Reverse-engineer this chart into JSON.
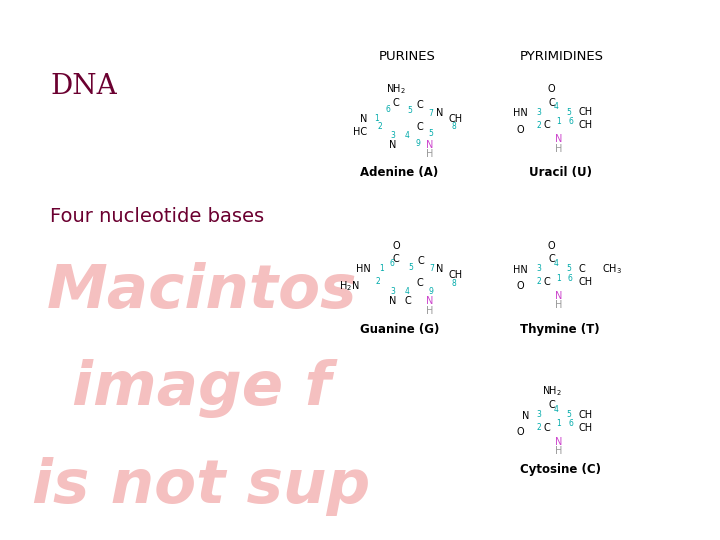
{
  "title_dna": "DNA",
  "title_dna_color": "#6B0030",
  "subtitle": "Four nucleotide bases",
  "subtitle_color": "#6B0030",
  "background_color": "#ffffff",
  "watermark_lines": [
    "Macintos",
    "image f",
    "is not suρ"
  ],
  "watermark_color": "#f5c0c0",
  "purines_label": "PURINES",
  "pyrimidines_label": "PYRIMIDINES",
  "adenine_label": "Adenine (A)",
  "uracil_label": "Uracil (U)",
  "guanine_label": "Guanine (G)",
  "thymine_label": "Thymine (T)",
  "cytosine_label": "Cytosine (C)",
  "num_color": "#00AAAA",
  "pink_n_color": "#CC44CC",
  "gray_h_color": "#999999",
  "fig_width": 7.2,
  "fig_height": 5.4,
  "dpi": 100
}
